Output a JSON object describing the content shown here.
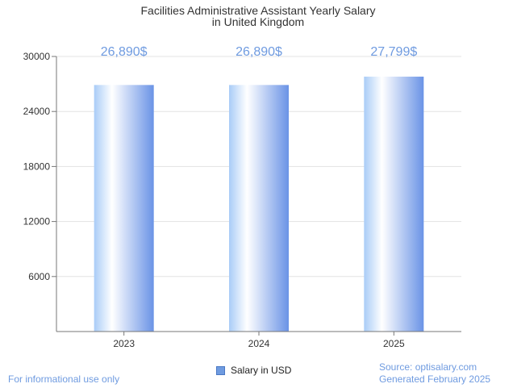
{
  "chart_data": {
    "type": "bar",
    "title_lines": [
      "Facilities Administrative Assistant Yearly Salary",
      "in United Kingdom"
    ],
    "categories": [
      "2023",
      "2024",
      "2025"
    ],
    "series": [
      {
        "name": "Salary in USD",
        "values": [
          26890,
          26890,
          27799
        ]
      }
    ],
    "data_labels": [
      "26,890$",
      "26,890$",
      "27,799$"
    ],
    "ylim": [
      0,
      30000
    ],
    "yticks": [
      6000,
      12000,
      18000,
      24000,
      30000
    ],
    "grid": true,
    "legend_position": "bottom",
    "bar_color": "#6f9be0"
  },
  "footer": {
    "note": "For informational use only",
    "source": "Source: optisalary.com",
    "generated": "Generated February 2025"
  }
}
